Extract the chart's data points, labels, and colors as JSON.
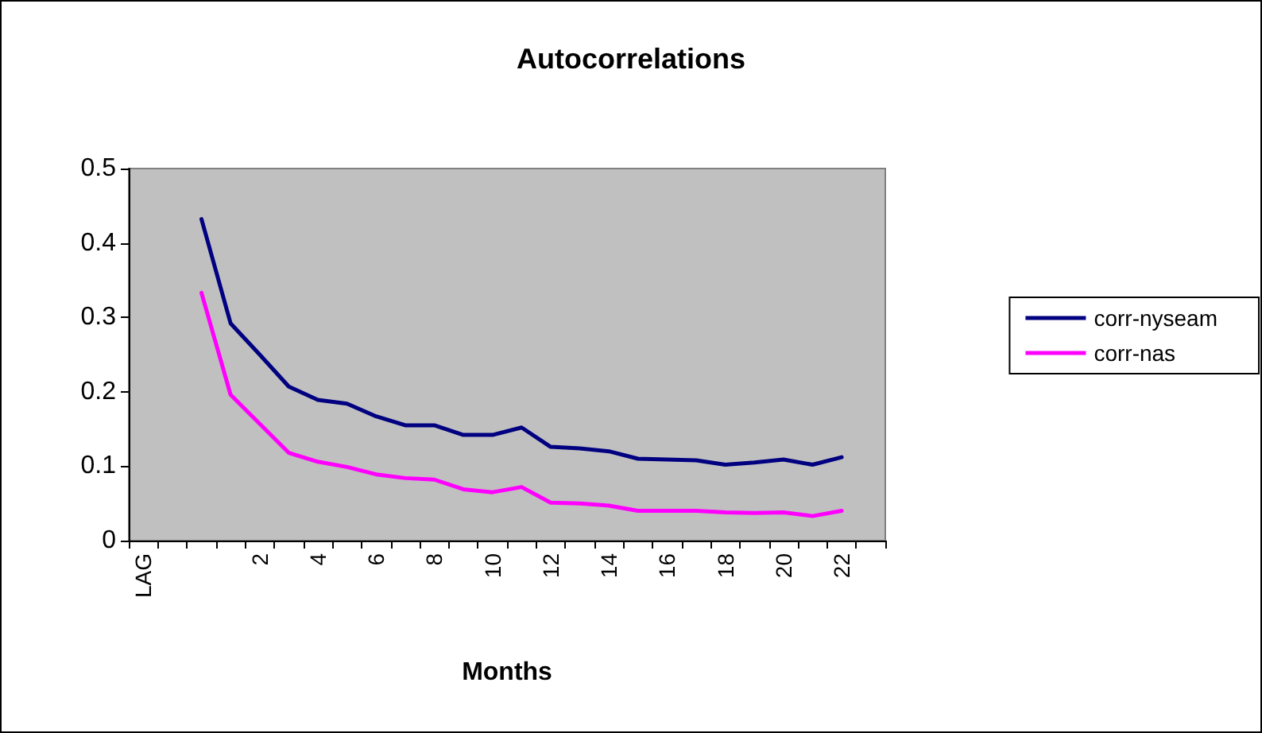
{
  "chart_data": {
    "type": "line",
    "title": "Autocorrelations",
    "xlabel": "Months",
    "categories": [
      "LAG",
      null,
      null,
      null,
      "2",
      null,
      "4",
      null,
      "6",
      null,
      "8",
      null,
      "10",
      null,
      "12",
      null,
      "14",
      null,
      "16",
      null,
      "18",
      null,
      "20",
      null,
      "22",
      null
    ],
    "series": [
      {
        "name": "corr-nyseam",
        "color": "#000080",
        "values": [
          null,
          null,
          0.432,
          0.292,
          0.25,
          0.207,
          0.189,
          0.184,
          0.167,
          0.155,
          0.155,
          0.142,
          0.142,
          0.152,
          0.126,
          0.124,
          0.12,
          0.11,
          0.109,
          0.108,
          0.102,
          0.105,
          0.109,
          0.102,
          0.112,
          null
        ]
      },
      {
        "name": "corr-nas",
        "color": "#ff00ff",
        "values": [
          null,
          null,
          0.333,
          0.196,
          0.157,
          0.118,
          0.106,
          0.099,
          0.089,
          0.084,
          0.082,
          0.069,
          0.065,
          0.072,
          0.051,
          0.05,
          0.047,
          0.04,
          0.04,
          0.04,
          0.038,
          0.037,
          0.038,
          0.033,
          0.04,
          null
        ]
      }
    ],
    "ylim": [
      0,
      0.5
    ],
    "yticks": [
      0,
      0.1,
      0.2,
      0.3,
      0.4,
      0.5
    ],
    "grid": false,
    "legend": "right",
    "marker": "none",
    "line_style": "solid"
  }
}
